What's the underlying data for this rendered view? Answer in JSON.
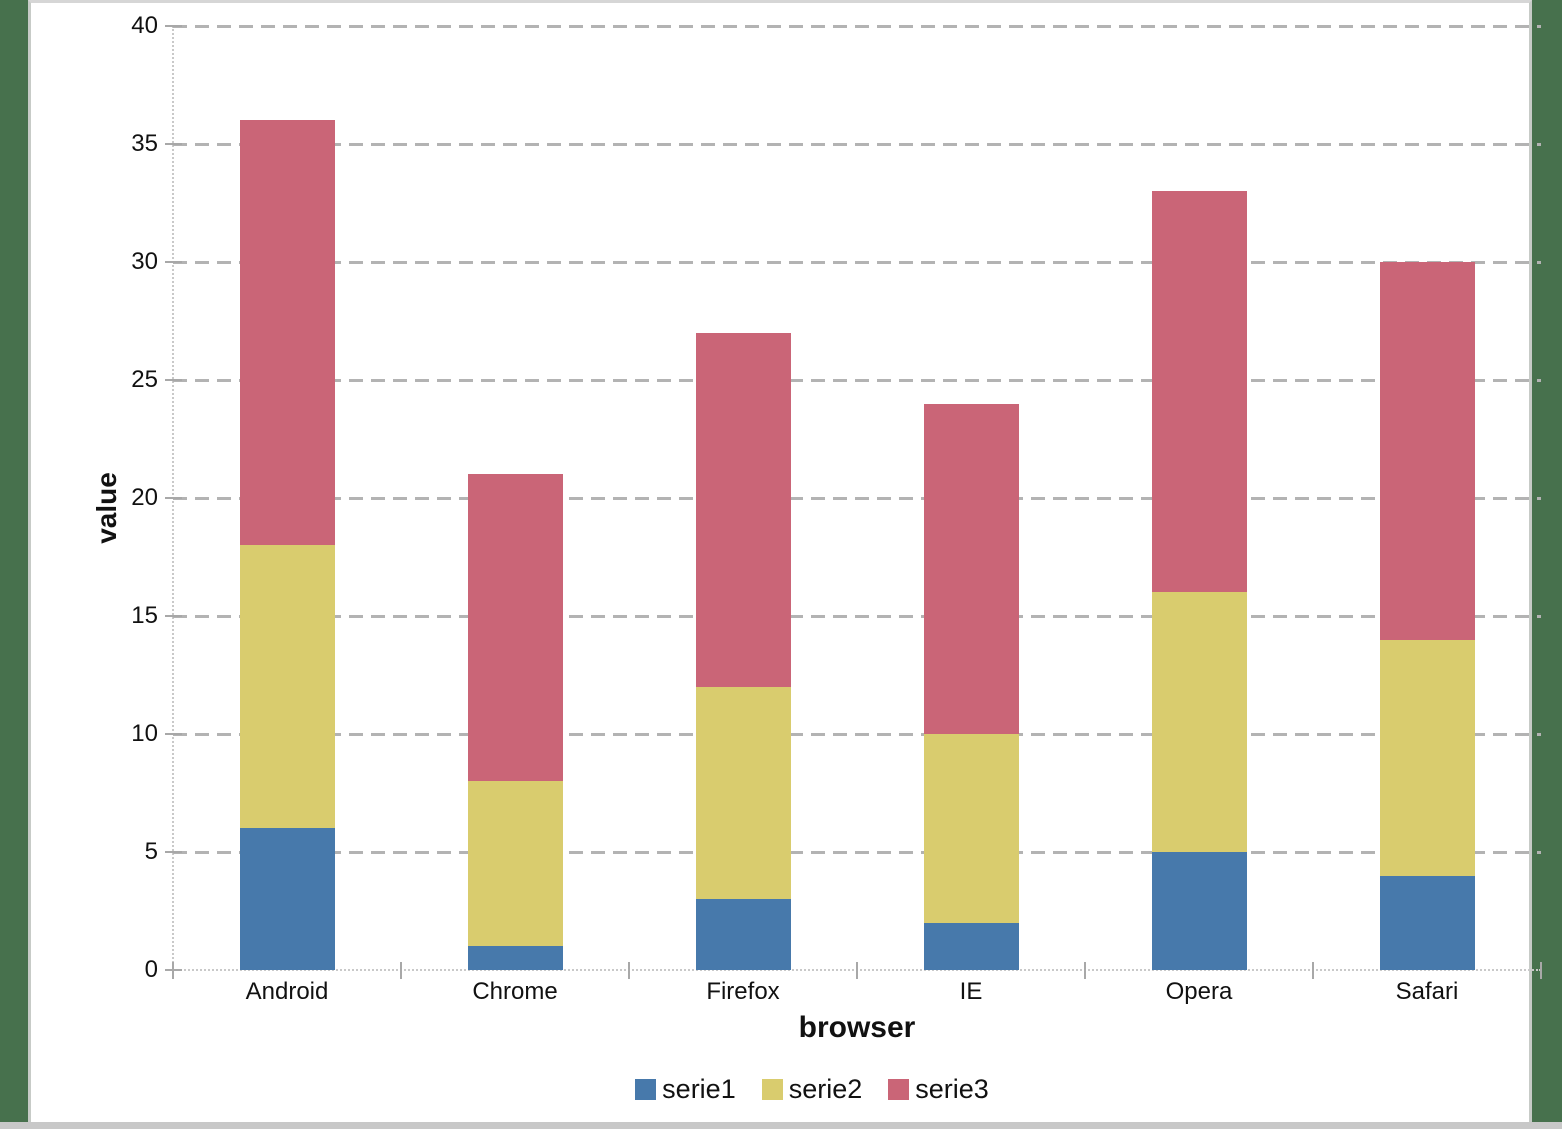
{
  "page": {
    "background_color": "#47714D",
    "panel_color": "#FFFFFF",
    "bottom_strip_color": "#C8C8C8"
  },
  "chart_data": {
    "type": "bar",
    "stacked": true,
    "title": "",
    "xlabel": "browser",
    "ylabel": "value",
    "categories": [
      "Android",
      "Chrome",
      "Firefox",
      "IE",
      "Opera",
      "Safari"
    ],
    "series": [
      {
        "name": "serie1",
        "color": "#4779AB",
        "values": [
          6,
          1,
          3,
          2,
          5,
          4
        ]
      },
      {
        "name": "serie2",
        "color": "#D9CC6E",
        "values": [
          12,
          7,
          9,
          8,
          11,
          10
        ]
      },
      {
        "name": "serie3",
        "color": "#CA6577",
        "values": [
          18,
          13,
          15,
          14,
          17,
          16
        ]
      }
    ],
    "stack_totals": [
      36,
      21,
      27,
      24,
      33,
      30
    ],
    "ylim": [
      0,
      40
    ],
    "y_tick_step": 5,
    "y_tick_labels": [
      "0",
      "5",
      "10",
      "15",
      "20",
      "25",
      "30",
      "35",
      "40"
    ],
    "grid": true,
    "gridline_color": "#B3B3B3",
    "axis_line_color": "#C9C9C9",
    "tick_mark_color": "#A8A8A8",
    "text_color": "#111111",
    "legend_position": "bottom",
    "legend_entries": [
      "serie1",
      "serie2",
      "serie3"
    ]
  }
}
